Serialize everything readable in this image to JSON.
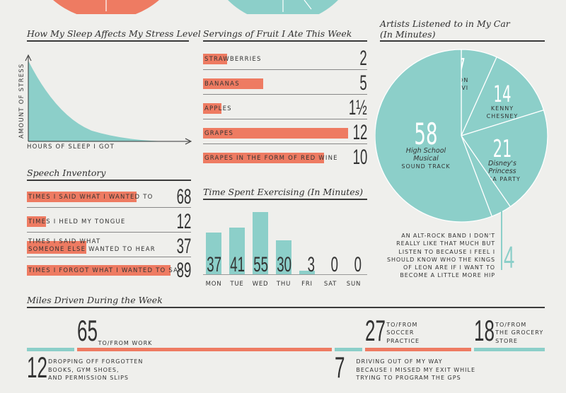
{
  "colors": {
    "coral": "#ee7b62",
    "teal": "#8ccfc9",
    "ink": "#333333",
    "bg": "#efefec"
  },
  "sleep": {
    "title": "How My Sleep Affects My Stress Level",
    "ylabel": "AMOUNT OF STRESS",
    "xlabel": "HOURS OF SLEEP I GOT"
  },
  "fruit": {
    "title": "Servings of Fruit I Ate This Week",
    "max": 12,
    "rows": [
      {
        "label": "STRAWBERRIES",
        "value_text": "2",
        "value": 2
      },
      {
        "label": "BANANAS",
        "value_text": "5",
        "value": 5
      },
      {
        "label": "APPLES",
        "value_text": "1½",
        "value": 1.5
      },
      {
        "label": "GRAPES",
        "value_text": "12",
        "value": 12
      },
      {
        "label": "GRAPES IN THE FORM OF RED WINE",
        "value_text": "10",
        "value": 10
      }
    ]
  },
  "speech": {
    "title": "Speech Inventory",
    "max": 89,
    "rows": [
      {
        "label": "TIMES I SAID WHAT I WANTED TO",
        "value_text": "68",
        "value": 68
      },
      {
        "label": "TIMES I HELD MY TONGUE",
        "value_text": "12",
        "value": 12
      },
      {
        "label": "TIMES I SAID WHAT",
        "label2": "SOMEONE ELSE WANTED TO HEAR",
        "value_text": "37",
        "value": 37
      },
      {
        "label": "TIMES I FORGOT WHAT I WANTED TO SAY",
        "value_text": "89",
        "value": 89
      }
    ]
  },
  "exercise": {
    "title": "Time Spent Exercising (In Minutes)",
    "max": 55,
    "days": [
      "MON",
      "TUE",
      "WED",
      "THU",
      "FRI",
      "SAT",
      "SUN"
    ],
    "values": [
      37,
      41,
      55,
      30,
      3,
      0,
      0
    ],
    "labels": [
      "37",
      "41",
      "55",
      "30",
      "3",
      "0",
      "0"
    ]
  },
  "artists": {
    "title": "Artists Listened to in My Car",
    "title2": "(In Minutes)",
    "slices": [
      {
        "value": 7,
        "number": "7",
        "lines": [
          "BON",
          "JOVI"
        ],
        "style": "caps"
      },
      {
        "value": 14,
        "number": "14",
        "lines": [
          "KENNY",
          "CHESNEY"
        ],
        "style": "caps"
      },
      {
        "value": 21,
        "number": "21",
        "lines": [
          "Disney's",
          "Princess",
          "TEA PARTY"
        ],
        "style": "mixed"
      },
      {
        "value": 4,
        "number": "4",
        "lines": [],
        "style": "caps"
      },
      {
        "value": 58,
        "number": "58",
        "lines": [
          "High School",
          "Musical",
          "SOUND TRACK"
        ],
        "style": "mixed"
      }
    ],
    "callout_number": "4",
    "callout_lines": [
      "AN ALT-ROCK BAND I DON'T",
      "REALLY LIKE THAT MUCH BUT",
      "LISTEN TO BECAUSE I FEEL I",
      "SHOULD KNOW WHO THE KINGS",
      "OF LEON ARE IF I WANT TO",
      "BECOME A LITTLE MORE HIP"
    ]
  },
  "miles": {
    "title": "Miles Driven During the Week",
    "segments": [
      {
        "value": 12,
        "number": "12",
        "color": "teal",
        "lines": [
          "DROPPING OFF FORGOTTEN",
          "BOOKS, GYM SHOES,",
          "AND PERMISSION SLIPS"
        ],
        "label_pos": "below"
      },
      {
        "value": 65,
        "number": "65",
        "color": "coral",
        "lines": [
          "TO/FROM WORK"
        ],
        "label_pos": "above"
      },
      {
        "value": 7,
        "number": "7",
        "color": "teal",
        "lines": [
          "DRIVING OUT OF MY WAY",
          "BECAUSE I MISSED MY EXIT WHILE",
          "TRYING TO PROGRAM THE GPS"
        ],
        "label_pos": "below"
      },
      {
        "value": 27,
        "number": "27",
        "color": "coral",
        "lines": [
          "TO/FROM",
          "SOCCER",
          "PRACTICE"
        ],
        "label_pos": "above"
      },
      {
        "value": 18,
        "number": "18",
        "color": "teal",
        "lines": [
          "TO/FROM",
          "THE GROCERY",
          "STORE"
        ],
        "label_pos": "above"
      }
    ]
  }
}
